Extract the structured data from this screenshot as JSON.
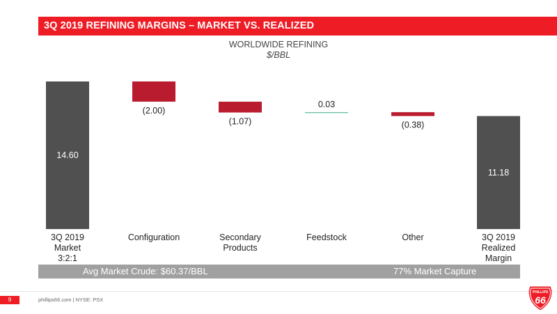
{
  "header": {
    "title": "3Q 2019 REFINING MARGINS – MARKET VS. REALIZED",
    "subtitle": "WORLDWIDE REFINING",
    "unit": "$/BBL"
  },
  "chart_data": {
    "type": "bar",
    "subtype": "waterfall",
    "title": "WORLDWIDE REFINING",
    "ylabel": "$/BBL",
    "categories": [
      "3Q 2019 Market 3:2:1",
      "Configuration",
      "Secondary Products",
      "Feedstock",
      "Other",
      "3Q 2019 Realized Margin"
    ],
    "category_lines": [
      [
        "3Q 2019",
        "Market",
        "3:2:1"
      ],
      [
        "Configuration"
      ],
      [
        "Secondary",
        "Products"
      ],
      [
        "Feedstock"
      ],
      [
        "Other"
      ],
      [
        "3Q 2019",
        "Realized",
        "Margin"
      ]
    ],
    "values": [
      14.6,
      -2.0,
      -1.07,
      0.03,
      -0.38,
      11.18
    ],
    "data_labels": [
      "14.60",
      "(2.00)",
      "(1.07)",
      "0.03",
      "(0.38)",
      "11.18"
    ],
    "bar_kinds": [
      "total",
      "delta",
      "delta",
      "delta",
      "delta",
      "total"
    ],
    "ylim": [
      0,
      14.6
    ],
    "grid": false,
    "legend": "none",
    "colors": {
      "total": "#505050",
      "negative": "#b81c2e",
      "positive": "#56b894"
    }
  },
  "info_bar": {
    "left": "Avg Market Crude: $60.37/BBL",
    "right": "77% Market Capture"
  },
  "footer": {
    "page_number": "9",
    "text": "phillips66.com  |  NYSE: PSX"
  },
  "logo": {
    "text_top": "PHILLIPS",
    "text_number": "66",
    "icon": "shield-logo-icon",
    "color": "#ee1c25"
  }
}
